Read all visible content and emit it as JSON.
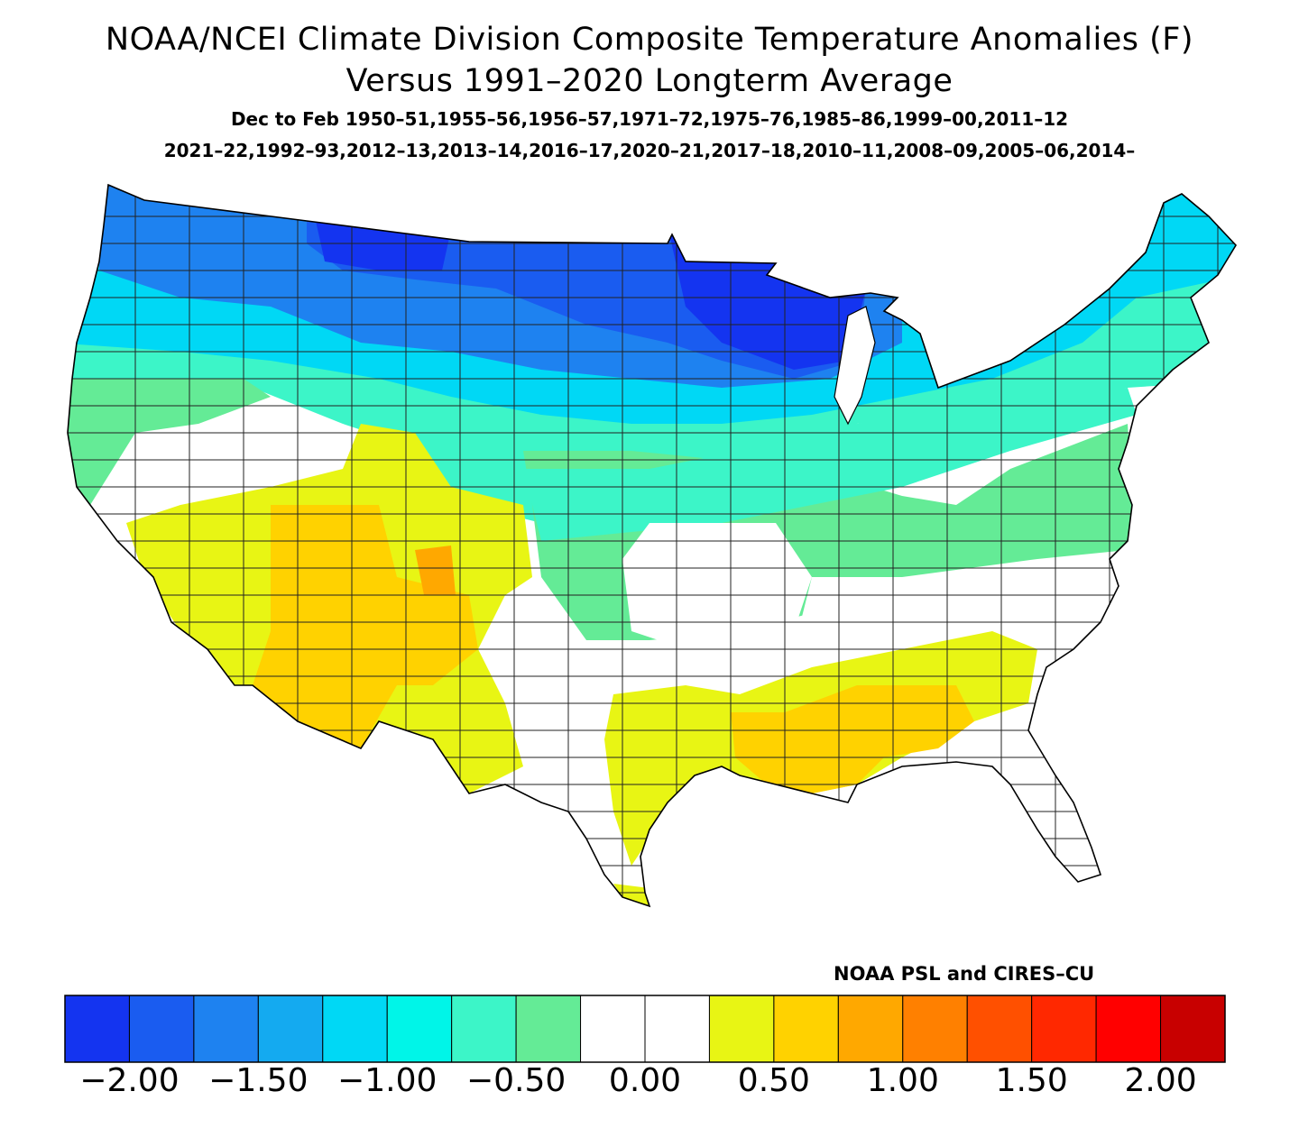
{
  "title_line1": "NOAA/NCEI Climate Division Composite Temperature Anomalies (F)",
  "title_line2": "Versus 1991–2020 Longterm Average",
  "subtitle_line1": "Dec to Feb  1950–51,1955–56,1956–57,1971–72,1975–76,1985–86,1999–00,2011–12",
  "subtitle_line2": "2021–22,1992–93,2012–13,2013–14,2016–17,2020–21,2017–18,2010–11,2008–09,2005–06,2014–",
  "credit": "NOAA PSL and CIRES–CU",
  "colorbar": {
    "colors": [
      "#1434f0",
      "#1a5cf0",
      "#1e82f0",
      "#14aaf0",
      "#00d8f5",
      "#00f5e8",
      "#3cf5c8",
      "#64eb96",
      "#ffffff",
      "#ffffff",
      "#e8f514",
      "#ffd200",
      "#ffa800",
      "#ff8000",
      "#ff5000",
      "#ff2800",
      "#ff0000",
      "#c80000"
    ],
    "tick_labels": [
      "−2.00",
      "−1.50",
      "−1.00",
      "−0.50",
      "0.00",
      "0.50",
      "1.00",
      "1.50",
      "2.00"
    ]
  },
  "map_data": {
    "region": "Contiguous United States climate divisions",
    "pattern": [
      {
        "region": "Northern Plains / Upper Midwest",
        "class": "cold_strong"
      },
      {
        "region": "Pacific Northwest / Northern Rockies",
        "class": "cold"
      },
      {
        "region": "Great Lakes / Northeast",
        "class": "cold_mild"
      },
      {
        "region": "Central Plains / Ohio Valley",
        "class": "cool"
      },
      {
        "region": "Great Basin / Southern Plains",
        "class": "near_normal"
      },
      {
        "region": "Southwest / Gulf Coast",
        "class": "warm"
      },
      {
        "region": "Four Corners / Louisiana",
        "class": "warm_strong"
      }
    ]
  }
}
